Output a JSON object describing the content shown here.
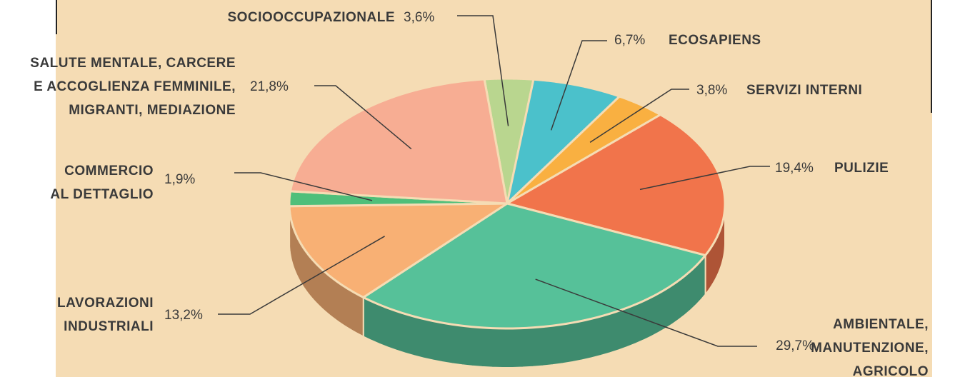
{
  "chart_data": {
    "type": "pie",
    "categories": [
      "SOCIOOCCUPAZIONALE",
      "ECOSAPIENS",
      "SERVIZI INTERNI",
      "PULIZIE",
      "AMBIENTALE,\nMANUTENZIONE,\nAGRICOLO",
      "LAVORAZIONI\nINDUSTRIALI",
      "COMMERCIO\nAL DETTAGLIO",
      "SALUTE MENTALE, CARCERE\nE ACCOGLIENZA FEMMINILE,\nMIGRANTI, MEDIAZIONE"
    ],
    "values": [
      3.6,
      6.7,
      3.8,
      19.4,
      29.7,
      13.2,
      1.9,
      21.8
    ],
    "value_labels": [
      "3,6%",
      "6,7%",
      "3,8%",
      "19,4%",
      "29,7%",
      "13,2%",
      "1,9%",
      "21,8%"
    ],
    "colors": [
      "#b9d68f",
      "#4bc1cb",
      "#f9b041",
      "#f1744b",
      "#56c199",
      "#f8b074",
      "#4fbf7a",
      "#f7ad93"
    ]
  }
}
